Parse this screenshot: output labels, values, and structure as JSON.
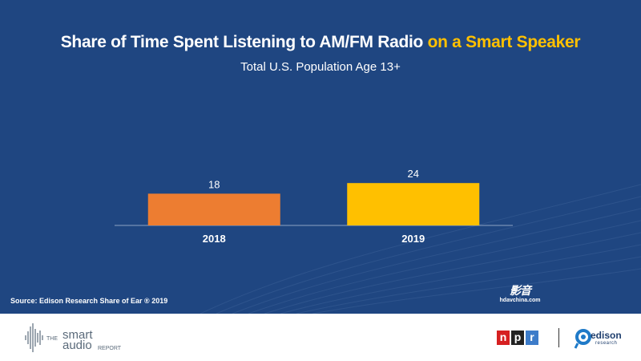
{
  "title": {
    "main": "Share of Time Spent Listening to AM/FM Radio ",
    "accent": "on a Smart Speaker"
  },
  "subtitle": "Total U.S. Population Age 13+",
  "source": "Source: Edison Research Share of Ear ® 2019",
  "watermark": {
    "big": "影音",
    "small": "hdavchina.com"
  },
  "footer": {
    "smart_audio": {
      "the": "THE",
      "smart": "smart",
      "audio": "audio",
      "report": "REPORT"
    },
    "npr": [
      "n",
      "p",
      "r"
    ],
    "edison": {
      "name": "edison",
      "sub": "research"
    }
  },
  "colors": {
    "background": "#1f4681",
    "bar_2018": "#ed7d31",
    "bar_2019": "#ffc000",
    "accent": "#ffc000"
  },
  "chart_data": {
    "type": "bar",
    "title": "Share of Time Spent Listening to AM/FM Radio on a Smart Speaker",
    "subtitle": "Total U.S. Population Age 13+",
    "categories": [
      "2018",
      "2019"
    ],
    "values": [
      18,
      24
    ],
    "colors": [
      "#ed7d31",
      "#ffc000"
    ],
    "data_labels": [
      "18",
      "24"
    ],
    "xlabel": "",
    "ylabel": "",
    "ylim": [
      0,
      100
    ],
    "grid": false,
    "legend": "none"
  }
}
